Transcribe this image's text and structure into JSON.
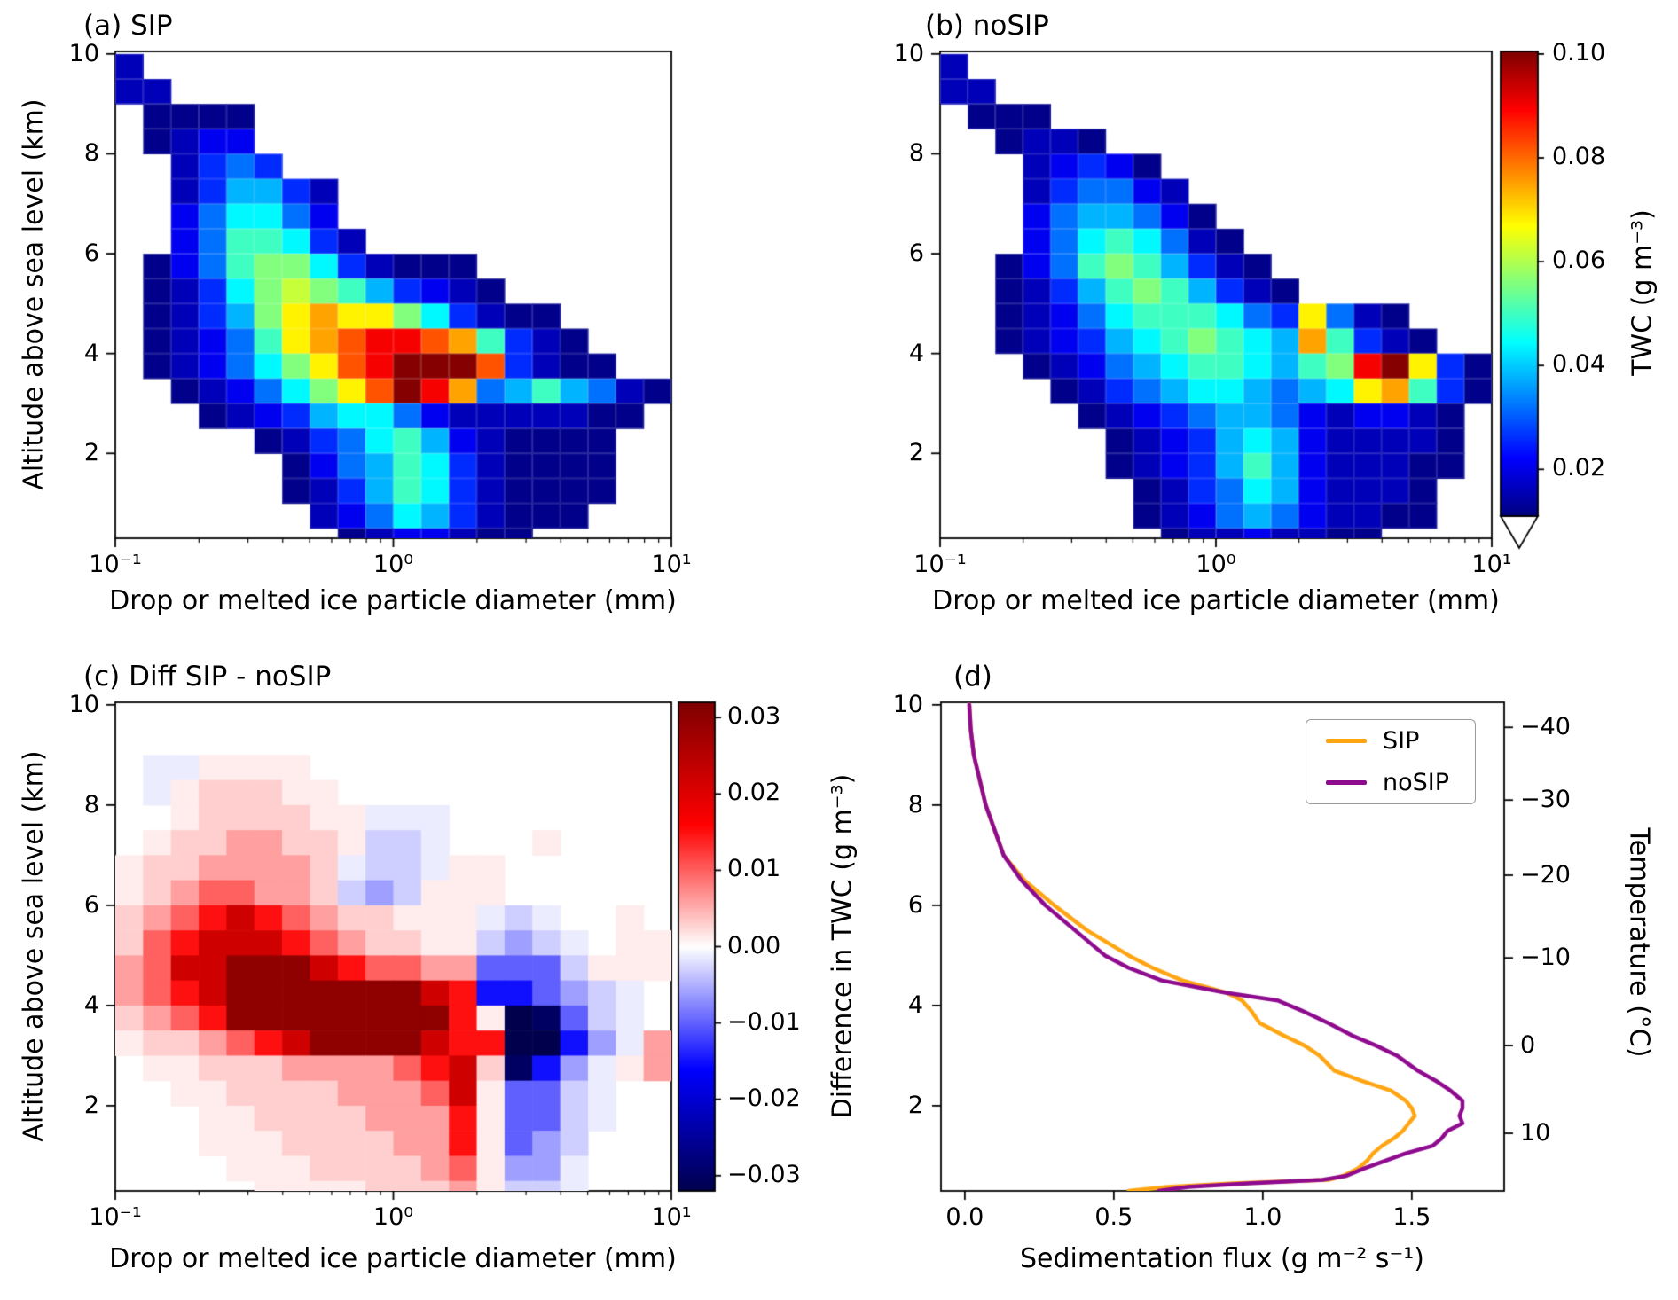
{
  "figure": {
    "background": "#ffffff",
    "text_color": "#000000"
  },
  "labels": {
    "diameter_xlabel": "Drop or melted ice particle diameter (mm)",
    "altitude_ylabel": "Altitude above sea level (km)",
    "flux_xlabel": "Sedimentation flux (g m⁻² s⁻¹)",
    "temperature_label": "Temperature (°C)",
    "twc_colorbar_label": "TWC (g m⁻³)",
    "diff_colorbar_label": "Difference in TWC (g m⁻³)"
  },
  "panels": {
    "a": {
      "title": "(a) SIP",
      "yticks": [
        "2",
        "4",
        "6",
        "8",
        "10"
      ],
      "ytick_values": [
        2,
        4,
        6,
        8,
        10
      ],
      "xticks": [
        {
          "label": "10⁻¹",
          "log10": -1
        },
        {
          "label": "10⁰",
          "log10": 0
        },
        {
          "label": "10¹",
          "log10": 1
        }
      ]
    },
    "b": {
      "title": "(b) noSIP",
      "yticks": [
        "2",
        "4",
        "6",
        "8",
        "10"
      ],
      "ytick_values": [
        2,
        4,
        6,
        8,
        10
      ],
      "xticks": [
        {
          "label": "10⁻¹",
          "log10": -1
        },
        {
          "label": "10⁰",
          "log10": 0
        },
        {
          "label": "10¹",
          "log10": 1
        }
      ]
    },
    "c": {
      "title": "(c) Diff SIP - noSIP",
      "yticks": [
        "2",
        "4",
        "6",
        "8",
        "10"
      ],
      "ytick_values": [
        2,
        4,
        6,
        8,
        10
      ],
      "xticks": [
        {
          "label": "10⁻¹",
          "log10": -1
        },
        {
          "label": "10⁰",
          "log10": 0
        },
        {
          "label": "10¹",
          "log10": 1
        }
      ]
    },
    "d": {
      "title": "(d)",
      "yticks": [
        "2",
        "4",
        "6",
        "8",
        "10"
      ],
      "ytick_values": [
        2,
        4,
        6,
        8,
        10
      ],
      "xticks": [
        {
          "label": "0.0",
          "v": 0.0
        },
        {
          "label": "0.5",
          "v": 0.5
        },
        {
          "label": "1.0",
          "v": 1.0
        },
        {
          "label": "1.5",
          "v": 1.5
        }
      ],
      "legend": [
        {
          "label": "SIP",
          "color": "#FFA513"
        },
        {
          "label": "noSIP",
          "color": "#8E0A8E"
        }
      ],
      "temperature_ticks": [
        {
          "label": "−40",
          "altitude_km": 9.55
        },
        {
          "label": "−30",
          "altitude_km": 8.1
        },
        {
          "label": "−20",
          "altitude_km": 6.6
        },
        {
          "label": "−10",
          "altitude_km": 4.95
        },
        {
          "label": "0",
          "altitude_km": 3.2
        },
        {
          "label": "10",
          "altitude_km": 1.45
        }
      ]
    }
  },
  "colorbars": {
    "twc": {
      "label": "TWC (g m⁻³)",
      "colormap": "jet",
      "vmin": 0.011,
      "vmax": 0.1005,
      "extend_min": true,
      "ticks": [
        {
          "label": "0.10",
          "v": 0.1
        },
        {
          "label": "0.08",
          "v": 0.08
        },
        {
          "label": "0.06",
          "v": 0.06
        },
        {
          "label": "0.04",
          "v": 0.04
        },
        {
          "label": "0.02",
          "v": 0.02
        }
      ]
    },
    "diff": {
      "label": "Difference in TWC (g m⁻³)",
      "colormap": "seismic",
      "vmin": -0.032,
      "vmax": 0.032,
      "ticks": [
        {
          "label": "0.03",
          "v": 0.03
        },
        {
          "label": "0.02",
          "v": 0.02
        },
        {
          "label": "0.01",
          "v": 0.01
        },
        {
          "label": "0.00",
          "v": 0.0
        },
        {
          "label": "−0.01",
          "v": -0.01
        },
        {
          "label": "−0.02",
          "v": -0.02
        },
        {
          "label": "−0.03",
          "v": -0.03
        }
      ]
    }
  },
  "chart_data": [
    {
      "id": "a",
      "type": "heatmap",
      "title": "(a) SIP",
      "x": "drop or melted ice particle diameter (mm), 20 log-spaced bins",
      "x_bins": {
        "log10_min": -1,
        "log10_max": 1,
        "n": 20
      },
      "y_bins": {
        "km_top": 10.0,
        "km_bottom": 0.0,
        "n": 20,
        "order": "top-down",
        "bin_km": 0.5
      },
      "value_units": "TWC (g m⁻³)",
      "colormap": "jet",
      "vmin": 0.011,
      "vmax": 0.1005,
      "level_values": [
        null,
        0.012,
        0.016,
        0.021,
        0.026,
        0.032,
        0.038,
        0.044,
        0.05,
        0.056,
        0.062,
        0.068,
        0.075,
        0.082,
        0.09,
        0.1
      ],
      "rows": [
        "20000000000000000000",
        "22000000000000000000",
        "01111000000000000000",
        "01233000000000000000",
        "00245400000000000000",
        "00246642000000000000",
        "00357753000000000000",
        "00358874200000000000",
        "01358997421110000000",
        "012479a9864321000000",
        "012469bcbb9742110000",
        "012358bcdeedc8421000",
        "0123579bdefffd421100",
        "00123579bdfec5686521",
        "00012346775322222110",
        "00000124578632111100",
        "00000013568742111100",
        "00000012468742111100",
        "00000002357642111000",
        "00000000123321100000"
      ]
    },
    {
      "id": "b",
      "type": "heatmap",
      "title": "(b) noSIP",
      "x": "drop or melted ice particle diameter (mm), 20 log-spaced bins",
      "x_bins": {
        "log10_min": -1,
        "log10_max": 1,
        "n": 20
      },
      "y_bins": {
        "km_top": 10.0,
        "km_bottom": 0.0,
        "n": 20,
        "order": "top-down",
        "bin_km": 0.5
      },
      "value_units": "TWC (g m⁻³)",
      "colormap": "jet",
      "vmin": 0.011,
      "vmax": 0.1005,
      "level_values": [
        null,
        0.012,
        0.016,
        0.021,
        0.026,
        0.032,
        0.038,
        0.044,
        0.05,
        0.056,
        0.062,
        0.068,
        0.075,
        0.082,
        0.09,
        0.1
      ],
      "rows": [
        "20000000000000000000",
        "22000000000000000000",
        "01110000000000000000",
        "00122100000000000000",
        "00023431000000000000",
        "00024553200000000000",
        "00035665310000000000",
        "00035787521000000000",
        "00135898642100000000",
        "00124689864210000000",
        "0012357888754b521000",
        "0012346789876c842100",
        "000123567887689efb41",
        "000012456776567bc841",
        "00000123456653233210",
        "00000012346763222210",
        "00000012346863222110",
        "00000001245763222100",
        "00000001235653221100",
        "00000000122322110000"
      ]
    },
    {
      "id": "c",
      "type": "heatmap",
      "title": "(c) Diff SIP - noSIP",
      "x": "drop or melted ice particle diameter (mm), 20 log-spaced bins",
      "x_bins": {
        "log10_min": -1,
        "log10_max": 1,
        "n": 20
      },
      "y_bins": {
        "km_top": 10.0,
        "km_bottom": 0.0,
        "n": 20,
        "order": "top-down",
        "bin_km": 0.5
      },
      "value_units": "Difference in TWC (g m⁻³)",
      "colormap": "seismic",
      "vmin": -0.032,
      "vmax": 0.032,
      "level_values": [
        0.0,
        0.0012,
        0.003,
        0.006,
        0.01,
        0.015,
        0.022,
        0.03,
        -0.0012,
        -0.003,
        -0.006,
        -0.01,
        -0.015,
        -0.022,
        -0.03,
        -0.035
      ],
      "rows": [
        "00000000000000000000",
        "00000000000000000000",
        "08811110000000000000",
        "08122211000000000000",
        "00122221188800000000",
        "01223322199800010000",
        "12233332899811000000",
        "123443329a9111000000",
        "23456543221118980010",
        "24566654322119a98011",
        "3466777654433bbb9111",
        "3456777777765ccba980",
        "23457777777751feb980",
        "12234567777655ffca83",
        "01122233334562eca813",
        "00112222333461bb9800",
        "00011222233351bb9800",
        "00011122223351ba9000",
        "00001112222341aa8000",
        "00000111122231998000"
      ]
    },
    {
      "id": "d",
      "type": "line",
      "title": "(d)",
      "xlabel": "Sedimentation flux (g m⁻² s⁻¹)",
      "ylabel": "Altitude above sea level (km)",
      "xlim": [
        -0.08,
        1.81
      ],
      "ylim": [
        0.3,
        10.05
      ],
      "altitude_km": [
        10,
        9.5,
        9,
        8.5,
        8,
        7.5,
        7,
        6.5,
        6,
        5.5,
        5,
        4.75,
        4.5,
        4.25,
        4.1,
        3.9,
        3.65,
        3.4,
        3.2,
        3.0,
        2.7,
        2.5,
        2.3,
        2.1,
        1.95,
        1.8,
        1.65,
        1.5,
        1.35,
        1.2,
        1.05,
        0.9,
        0.75,
        0.6,
        0.52,
        0.45,
        0.38,
        0.3
      ],
      "series": [
        {
          "name": "SIP",
          "color": "#FFA513",
          "flux": [
            0.015,
            0.02,
            0.03,
            0.05,
            0.07,
            0.1,
            0.13,
            0.2,
            0.3,
            0.41,
            0.55,
            0.63,
            0.73,
            0.88,
            0.93,
            0.96,
            0.99,
            1.07,
            1.14,
            1.19,
            1.24,
            1.33,
            1.43,
            1.48,
            1.5,
            1.51,
            1.49,
            1.47,
            1.44,
            1.4,
            1.37,
            1.35,
            1.32,
            1.27,
            1.22,
            0.9,
            0.68,
            0.55
          ]
        },
        {
          "name": "noSIP",
          "color": "#8E0A8E",
          "flux": [
            0.015,
            0.02,
            0.03,
            0.05,
            0.07,
            0.1,
            0.13,
            0.19,
            0.27,
            0.37,
            0.47,
            0.55,
            0.66,
            0.88,
            1.05,
            1.13,
            1.22,
            1.3,
            1.38,
            1.45,
            1.52,
            1.58,
            1.63,
            1.67,
            1.67,
            1.66,
            1.67,
            1.62,
            1.6,
            1.57,
            1.48,
            1.41,
            1.34,
            1.28,
            1.2,
            0.95,
            0.75,
            0.65
          ]
        }
      ],
      "temperature_axis": {
        "label": "Temperature (°C)",
        "ticks": [
          [
            -40,
            9.55
          ],
          [
            -30,
            8.1
          ],
          [
            -20,
            6.6
          ],
          [
            -10,
            4.95
          ],
          [
            0,
            3.2
          ],
          [
            10,
            1.45
          ]
        ]
      }
    }
  ]
}
